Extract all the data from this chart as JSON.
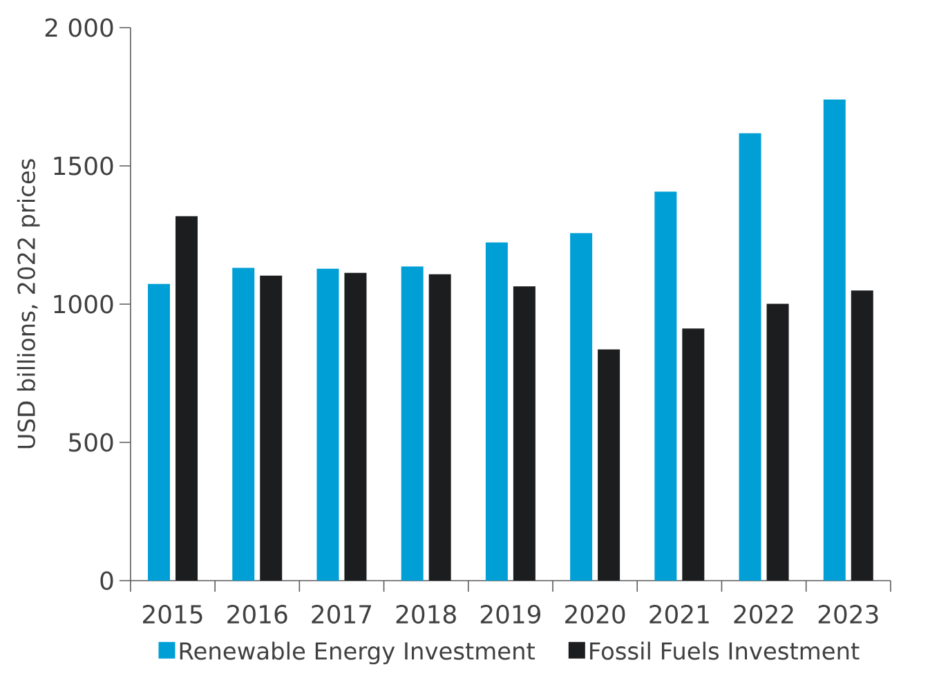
{
  "chart_data": {
    "type": "bar",
    "ylabel": "USD billions, 2022 prices",
    "categories": [
      "2015",
      "2016",
      "2017",
      "2018",
      "2019",
      "2020",
      "2021",
      "2022",
      "2023"
    ],
    "series": [
      {
        "name": "Renewable Energy Investment",
        "color": "#009fd6",
        "values": [
          1073,
          1131,
          1128,
          1136,
          1223,
          1257,
          1407,
          1618,
          1740
        ]
      },
      {
        "name": "Fossil Fuels Investment",
        "color": "#1c1d1f",
        "values": [
          1318,
          1103,
          1113,
          1108,
          1064,
          836,
          912,
          1001,
          1049
        ]
      }
    ],
    "ylim": [
      0,
      2000
    ],
    "yticks": [
      0,
      500,
      1000,
      1500,
      {
        "value": 2000,
        "label": "2 000"
      }
    ],
    "grid": false,
    "legend": "bottom"
  }
}
